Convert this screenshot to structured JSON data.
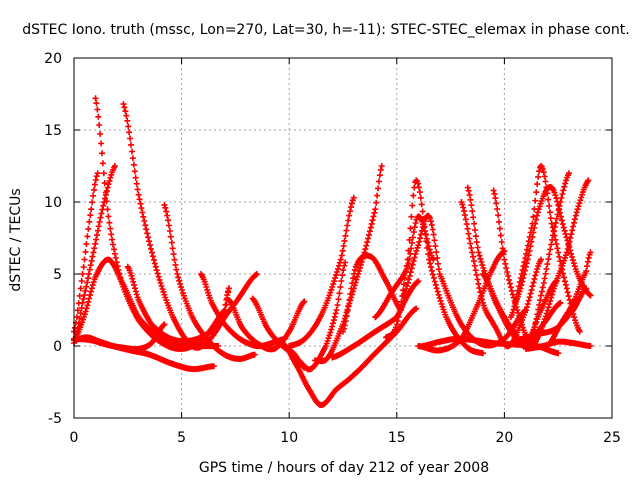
{
  "chart_data": {
    "type": "scatter",
    "title": "dSTEC Iono. truth (mssc, Lon=270, Lat=30, h=-11): STEC-STEC_elemax in phase cont.",
    "xlabel": "GPS time / hours of day 212 of year 2008",
    "ylabel": "dSTEC  / TECUs",
    "xlim": [
      0,
      25
    ],
    "ylim": [
      -5,
      20
    ],
    "x_ticks": [
      0,
      5,
      10,
      15,
      20,
      25
    ],
    "y_ticks": [
      -5,
      0,
      5,
      10,
      15,
      20
    ],
    "x_tick_labels": [
      "0",
      "5",
      "10",
      "15",
      "20",
      "25"
    ],
    "y_tick_labels": [
      "-5",
      "0",
      "5",
      "10",
      "15",
      "20"
    ],
    "grid": true,
    "marker": "+",
    "series": [
      {
        "x": [
          0.0,
          0.4,
          0.8,
          1.1
        ],
        "y": [
          1.0,
          5.0,
          9.5,
          12.0
        ]
      },
      {
        "x": [
          0.0,
          0.5,
          1.0,
          1.6,
          2.2,
          3.0,
          4.0,
          5.0,
          6.0,
          6.7
        ],
        "y": [
          0.4,
          2.2,
          4.8,
          6.0,
          4.5,
          2.0,
          0.6,
          0.1,
          0.0,
          0.0
        ]
      },
      {
        "x": [
          1.0,
          1.6,
          2.2,
          3.0,
          4.0,
          5.0,
          6.0,
          7.0,
          7.2
        ],
        "y": [
          17.2,
          9.0,
          4.5,
          1.8,
          0.3,
          -0.2,
          0.5,
          2.5,
          4.0
        ]
      },
      {
        "x": [
          0.0,
          0.4,
          0.9,
          1.4,
          1.9
        ],
        "y": [
          0.2,
          3.0,
          6.5,
          10.0,
          12.5
        ]
      },
      {
        "x": [
          0.0,
          0.6,
          1.2,
          1.8,
          2.6,
          3.5,
          4.5,
          5.5,
          6.5
        ],
        "y": [
          0.4,
          0.6,
          0.3,
          0.0,
          -0.3,
          -0.6,
          -1.2,
          -1.6,
          -1.4
        ]
      },
      {
        "x": [
          0.0,
          0.8,
          1.5,
          2.2,
          3.0,
          3.6,
          4.2
        ],
        "y": [
          0.5,
          0.4,
          0.1,
          -0.1,
          -0.2,
          0.2,
          1.5
        ]
      },
      {
        "x": [
          2.3,
          3.0,
          3.8,
          4.6,
          5.5,
          6.2,
          7.0,
          7.2
        ],
        "y": [
          16.8,
          10.5,
          5.5,
          2.0,
          0.0,
          0.3,
          2.0,
          4.0
        ]
      },
      {
        "x": [
          2.5,
          3.0,
          3.6,
          4.5,
          5.5,
          6.5,
          7.5,
          8.5
        ],
        "y": [
          5.5,
          3.2,
          1.5,
          0.5,
          0.4,
          1.2,
          3.0,
          5.0
        ]
      },
      {
        "x": [
          4.2,
          4.8,
          5.5,
          6.3,
          7.0,
          7.7,
          8.4
        ],
        "y": [
          9.8,
          5.0,
          2.0,
          0.3,
          -0.6,
          -0.9,
          -0.6
        ]
      },
      {
        "x": [
          5.9,
          6.4,
          7.0,
          7.7,
          8.5,
          9.2,
          9.8
        ],
        "y": [
          5.0,
          3.0,
          1.5,
          0.5,
          0.0,
          0.2,
          0.5
        ]
      },
      {
        "x": [
          7.2,
          7.8,
          8.5,
          9.3,
          10.0,
          10.7
        ],
        "y": [
          3.2,
          1.3,
          0.2,
          -0.2,
          1.0,
          3.1
        ]
      },
      {
        "x": [
          8.3,
          9.0,
          9.7,
          10.2,
          10.7
        ],
        "y": [
          3.3,
          1.2,
          0.0,
          -0.5,
          -1.5
        ]
      },
      {
        "x": [
          9.7,
          10.4,
          11.0,
          11.5,
          12.2,
          13.0,
          14.0,
          15.0,
          15.9
        ],
        "y": [
          0.2,
          -1.5,
          -3.2,
          -4.1,
          -3.0,
          -2.0,
          -0.5,
          1.0,
          2.6
        ]
      },
      {
        "x": [
          10.4,
          11.0,
          11.7,
          12.2,
          12.6
        ],
        "y": [
          -1.0,
          -1.6,
          0.0,
          2.5,
          5.8
        ]
      },
      {
        "x": [
          11.2,
          11.8,
          12.5,
          13.0,
          13.5,
          14.0,
          14.3
        ],
        "y": [
          -1.0,
          -0.8,
          1.5,
          4.0,
          6.5,
          9.5,
          12.5
        ]
      },
      {
        "x": [
          10.0,
          10.8,
          11.6,
          12.4,
          13.0
        ],
        "y": [
          0.0,
          0.6,
          2.5,
          6.0,
          10.3
        ]
      },
      {
        "x": [
          12.5,
          13.1,
          13.8,
          14.5,
          15.2
        ],
        "y": [
          1.0,
          5.5,
          6.2,
          4.5,
          2.5
        ]
      },
      {
        "x": [
          12.0,
          13.0,
          14.0,
          15.0,
          15.5,
          16.0
        ],
        "y": [
          -0.8,
          0.0,
          1.0,
          2.0,
          3.5,
          4.5
        ]
      },
      {
        "x": [
          14.5,
          15.0,
          15.5,
          15.9,
          16.5,
          17.3,
          18.2,
          19.0
        ],
        "y": [
          0.6,
          1.5,
          6.0,
          11.5,
          6.0,
          2.0,
          0.0,
          -0.5
        ]
      },
      {
        "x": [
          14.0,
          14.8,
          15.5,
          16.0,
          16.7
        ],
        "y": [
          2.0,
          3.8,
          5.5,
          9.0,
          6.0
        ]
      },
      {
        "x": [
          15.3,
          16.0,
          16.5,
          17.0,
          18.0,
          19.0,
          20.0,
          21.0
        ],
        "y": [
          3.5,
          7.0,
          9.0,
          5.0,
          1.5,
          0.1,
          0.5,
          2.5
        ]
      },
      {
        "x": [
          16.2,
          17.0,
          17.8,
          18.6,
          19.5,
          20.5,
          21.5,
          22.5
        ],
        "y": [
          0.0,
          0.3,
          0.5,
          0.4,
          0.2,
          0.1,
          0.0,
          -0.5
        ]
      },
      {
        "x": [
          16.0,
          17.0,
          18.0,
          18.8,
          19.5,
          20.0
        ],
        "y": [
          0.0,
          -0.3,
          0.5,
          3.0,
          5.5,
          6.6
        ]
      },
      {
        "x": [
          18.0,
          18.5,
          19.0,
          19.5,
          20.2,
          21.0,
          21.7
        ],
        "y": [
          10.0,
          6.5,
          3.0,
          1.5,
          0.0,
          2.5,
          6.0
        ]
      },
      {
        "x": [
          18.3,
          18.8,
          19.5,
          20.2,
          21.0,
          21.7,
          22.4
        ],
        "y": [
          11.0,
          6.5,
          3.5,
          1.5,
          0.2,
          2.5,
          4.5
        ]
      },
      {
        "x": [
          19.0,
          19.6,
          20.3,
          21.0,
          21.8,
          22.6
        ],
        "y": [
          5.0,
          3.0,
          1.0,
          0.0,
          1.5,
          3.0
        ]
      },
      {
        "x": [
          19.5,
          20.0,
          20.6,
          21.2,
          21.7,
          22.3,
          23.0
        ],
        "y": [
          10.8,
          6.0,
          2.5,
          0.5,
          3.5,
          8.0,
          12.0
        ]
      },
      {
        "x": [
          20.3,
          20.8,
          21.3,
          21.7,
          22.2,
          22.9,
          23.5
        ],
        "y": [
          2.0,
          5.0,
          8.5,
          12.5,
          8.5,
          4.0,
          1.0
        ]
      },
      {
        "x": [
          20.5,
          21.0,
          21.6,
          22.2,
          22.8,
          23.4,
          24.0
        ],
        "y": [
          3.0,
          5.5,
          9.5,
          11.0,
          8.0,
          5.0,
          3.5
        ]
      },
      {
        "x": [
          21.3,
          21.8,
          22.3,
          22.9,
          23.4,
          23.9
        ],
        "y": [
          0.0,
          1.5,
          4.0,
          6.5,
          9.5,
          11.5
        ]
      },
      {
        "x": [
          22.0,
          22.6,
          23.2,
          23.8,
          24.0
        ],
        "y": [
          0.0,
          1.5,
          3.0,
          5.2,
          6.5
        ]
      },
      {
        "x": [
          21.0,
          21.8,
          22.5,
          23.2,
          24.0
        ],
        "y": [
          -0.2,
          0.0,
          0.3,
          0.2,
          0.0
        ]
      },
      {
        "x": [
          20.5,
          21.5,
          22.4,
          23.2,
          23.8
        ],
        "y": [
          0.4,
          0.8,
          1.2,
          2.5,
          4.0
        ]
      }
    ]
  },
  "colors": {
    "series": "#ff0000",
    "grid": "#a0a0a0",
    "axis": "#000000"
  }
}
